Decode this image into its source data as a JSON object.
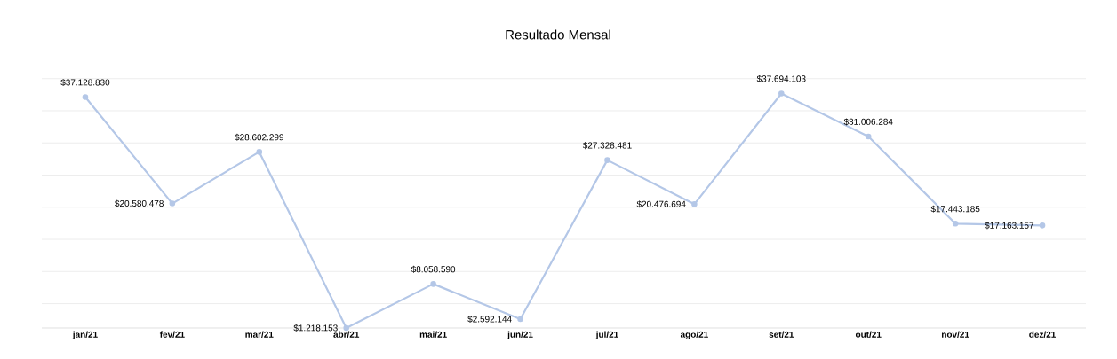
{
  "chart_data": {
    "type": "line",
    "title": "Resultado Mensal",
    "categories": [
      "jan/21",
      "fev/21",
      "mar/21",
      "abr/21",
      "mai/21",
      "jun/21",
      "jul/21",
      "ago/21",
      "set/21",
      "out/21",
      "nov/21",
      "dez/21"
    ],
    "values": [
      37128830,
      20580478,
      28602299,
      1218153,
      8058590,
      2592144,
      27328481,
      20476694,
      37694103,
      31006284,
      17443185,
      17163157
    ],
    "value_labels": [
      "$37.128.830",
      "$20.580.478",
      "$28.602.299",
      "$1.218.153",
      "$8.058.590",
      "$2.592.144",
      "$27.328.481",
      "$20.476.694",
      "$37.694.103",
      "$31.006.284",
      "$17.443.185",
      "$17.163.157"
    ],
    "color": "#b4c7e7",
    "tick_labels": "x",
    "grid": "y",
    "marker": "circle",
    "line_style": "solid"
  }
}
